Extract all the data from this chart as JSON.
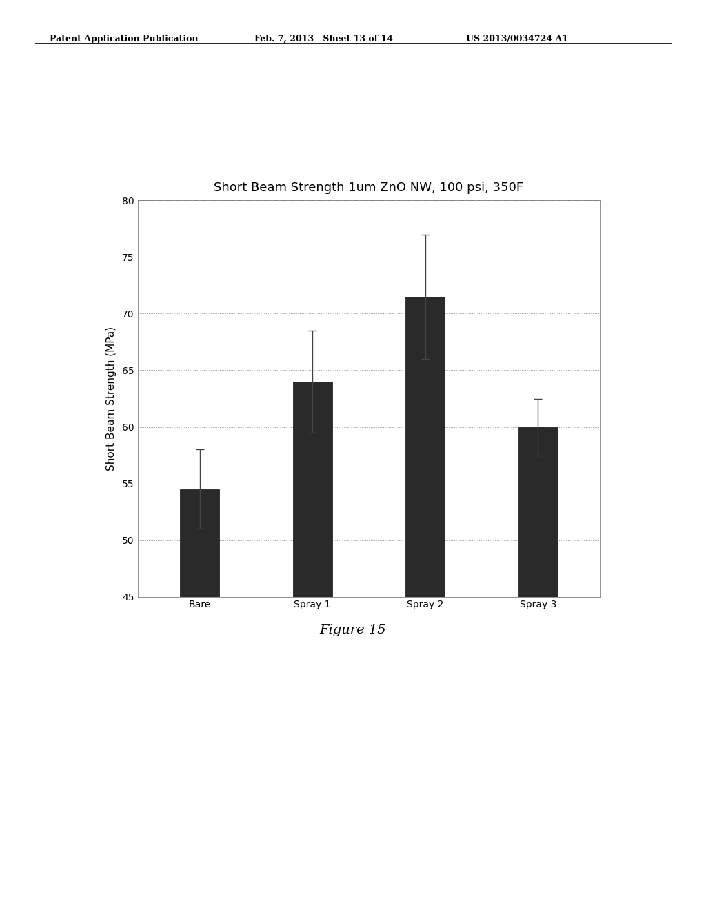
{
  "title": "Short Beam Strength 1um ZnO NW, 100 psi, 350F",
  "categories": [
    "Bare",
    "Spray 1",
    "Spray 2",
    "Spray 3"
  ],
  "values": [
    54.5,
    64.0,
    71.5,
    60.0
  ],
  "errors": [
    3.5,
    4.5,
    5.5,
    2.5
  ],
  "ylabel": "Short Beam Strength (MPa)",
  "ylim": [
    45,
    80
  ],
  "yticks": [
    45,
    50,
    55,
    60,
    65,
    70,
    75,
    80
  ],
  "bar_color": "#2a2a2a",
  "bar_width": 0.35,
  "figure_caption": "Figure 15",
  "header_left": "Patent Application Publication",
  "header_mid": "Feb. 7, 2013   Sheet 13 of 14",
  "header_right": "US 2013/0034724 A1",
  "bg_color": "#ffffff",
  "grid_color": "#999999",
  "error_color": "#444444",
  "title_fontsize": 13,
  "axis_label_fontsize": 11,
  "tick_fontsize": 10
}
